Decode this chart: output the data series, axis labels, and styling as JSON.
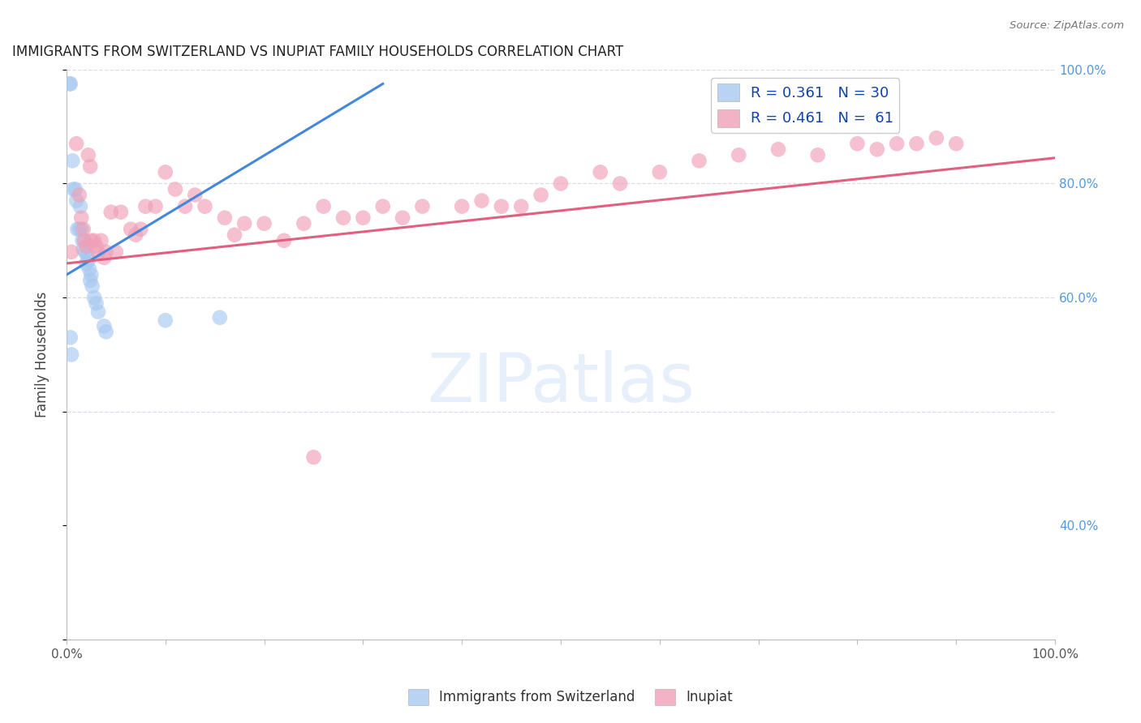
{
  "title": "IMMIGRANTS FROM SWITZERLAND VS INUPIAT FAMILY HOUSEHOLDS CORRELATION CHART",
  "source": "Source: ZipAtlas.com",
  "ylabel": "Family Households",
  "xlim": [
    0.0,
    1.0
  ],
  "ylim": [
    0.0,
    1.0
  ],
  "watermark": "ZIPatlas",
  "blue_color": "#A8C8F0",
  "pink_color": "#F0A0B8",
  "blue_line_color": "#4488DD",
  "pink_line_color": "#E06080",
  "legend_R_blue": "0.361",
  "legend_N_blue": "30",
  "legend_R_pink": "0.461",
  "legend_N_pink": "61",
  "blue_scatter_x": [
    0.003,
    0.004,
    0.006,
    0.007,
    0.009,
    0.01,
    0.011,
    0.013,
    0.014,
    0.015,
    0.016,
    0.017,
    0.018,
    0.019,
    0.02,
    0.021,
    0.022,
    0.023,
    0.024,
    0.025,
    0.026,
    0.028,
    0.03,
    0.032,
    0.038,
    0.04,
    0.1,
    0.155,
    0.004,
    0.005
  ],
  "blue_scatter_y": [
    0.975,
    0.975,
    0.84,
    0.79,
    0.79,
    0.77,
    0.72,
    0.72,
    0.76,
    0.72,
    0.7,
    0.685,
    0.7,
    0.68,
    0.66,
    0.675,
    0.665,
    0.65,
    0.63,
    0.64,
    0.62,
    0.6,
    0.59,
    0.575,
    0.55,
    0.54,
    0.56,
    0.565,
    0.53,
    0.5
  ],
  "pink_scatter_x": [
    0.005,
    0.01,
    0.013,
    0.015,
    0.017,
    0.018,
    0.02,
    0.022,
    0.024,
    0.025,
    0.028,
    0.03,
    0.032,
    0.035,
    0.038,
    0.04,
    0.045,
    0.05,
    0.055,
    0.065,
    0.07,
    0.075,
    0.08,
    0.09,
    0.1,
    0.11,
    0.12,
    0.13,
    0.14,
    0.16,
    0.17,
    0.18,
    0.2,
    0.22,
    0.24,
    0.26,
    0.28,
    0.3,
    0.32,
    0.34,
    0.36,
    0.4,
    0.42,
    0.44,
    0.46,
    0.48,
    0.5,
    0.54,
    0.56,
    0.6,
    0.64,
    0.68,
    0.72,
    0.76,
    0.8,
    0.82,
    0.84,
    0.86,
    0.88,
    0.9,
    0.25
  ],
  "pink_scatter_y": [
    0.68,
    0.87,
    0.78,
    0.74,
    0.72,
    0.7,
    0.69,
    0.85,
    0.83,
    0.7,
    0.7,
    0.69,
    0.68,
    0.7,
    0.67,
    0.68,
    0.75,
    0.68,
    0.75,
    0.72,
    0.71,
    0.72,
    0.76,
    0.76,
    0.82,
    0.79,
    0.76,
    0.78,
    0.76,
    0.74,
    0.71,
    0.73,
    0.73,
    0.7,
    0.73,
    0.76,
    0.74,
    0.74,
    0.76,
    0.74,
    0.76,
    0.76,
    0.77,
    0.76,
    0.76,
    0.78,
    0.8,
    0.82,
    0.8,
    0.82,
    0.84,
    0.85,
    0.86,
    0.85,
    0.87,
    0.86,
    0.87,
    0.87,
    0.88,
    0.87,
    0.32
  ],
  "blue_line_x": [
    0.0,
    0.32
  ],
  "blue_line_y": [
    0.64,
    0.975
  ],
  "pink_line_x": [
    0.0,
    1.0
  ],
  "pink_line_y": [
    0.66,
    0.845
  ],
  "grid_color": "#DCDCE8",
  "background_color": "#FFFFFF",
  "right_tick_color": "#5599DD",
  "title_fontsize": 12,
  "label_fontsize": 11
}
